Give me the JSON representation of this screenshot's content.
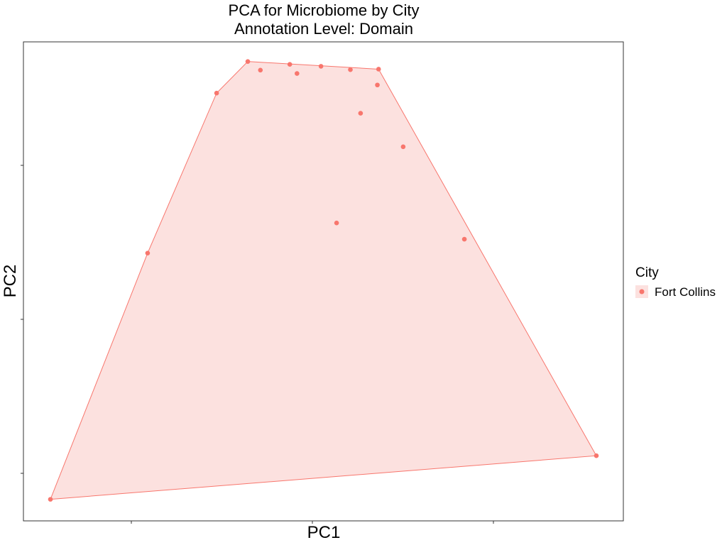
{
  "chart_data": {
    "type": "scatter",
    "title": "PCA for Microbiome by City",
    "subtitle": "Annotation Level: Domain",
    "xlabel": "PC1",
    "ylabel": "PC2",
    "xlim": [
      0,
      100
    ],
    "ylim": [
      0,
      100
    ],
    "x_ticks_labeled": false,
    "y_ticks_labeled": false,
    "grid": false,
    "legend": {
      "title": "City",
      "placement": "right"
    },
    "hull_fill": "#fce1df",
    "series": [
      {
        "name": "Fort Collins",
        "color": "#f8766d",
        "points": [
          {
            "x": 4.5,
            "y": 4.5
          },
          {
            "x": 20.7,
            "y": 55.9
          },
          {
            "x": 32.2,
            "y": 89.3
          },
          {
            "x": 37.4,
            "y": 95.9
          },
          {
            "x": 39.5,
            "y": 94.1
          },
          {
            "x": 44.4,
            "y": 95.3
          },
          {
            "x": 45.6,
            "y": 93.4
          },
          {
            "x": 49.6,
            "y": 94.9
          },
          {
            "x": 52.2,
            "y": 62.2
          },
          {
            "x": 54.5,
            "y": 94.2
          },
          {
            "x": 56.2,
            "y": 85.1
          },
          {
            "x": 59.2,
            "y": 94.3
          },
          {
            "x": 59.0,
            "y": 91.0
          },
          {
            "x": 63.3,
            "y": 78.1
          },
          {
            "x": 73.5,
            "y": 58.8
          },
          {
            "x": 95.5,
            "y": 13.6
          }
        ]
      }
    ]
  }
}
